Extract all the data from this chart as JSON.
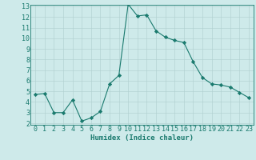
{
  "x": [
    0,
    1,
    2,
    3,
    4,
    5,
    6,
    7,
    8,
    9,
    10,
    11,
    12,
    13,
    14,
    15,
    16,
    17,
    18,
    19,
    20,
    21,
    22,
    23
  ],
  "y": [
    4.7,
    4.8,
    3.0,
    3.0,
    4.2,
    2.2,
    2.5,
    3.1,
    5.7,
    6.5,
    13.2,
    12.1,
    12.2,
    10.7,
    10.1,
    9.8,
    9.6,
    7.8,
    6.3,
    5.7,
    5.6,
    5.4,
    4.9,
    4.4
  ],
  "line_color": "#1a7a6e",
  "marker": "D",
  "marker_size": 2.2,
  "bg_color": "#ceeaea",
  "plot_bg_color": "#ceeaea",
  "grid_color": "#aecece",
  "xlabel": "Humidex (Indice chaleur)",
  "ylim": [
    2,
    13
  ],
  "xlim": [
    -0.5,
    23.5
  ],
  "yticks": [
    2,
    3,
    4,
    5,
    6,
    7,
    8,
    9,
    10,
    11,
    12,
    13
  ],
  "xticks": [
    0,
    1,
    2,
    3,
    4,
    5,
    6,
    7,
    8,
    9,
    10,
    11,
    12,
    13,
    14,
    15,
    16,
    17,
    18,
    19,
    20,
    21,
    22,
    23
  ],
  "xlabel_fontsize": 6.5,
  "tick_fontsize": 6.0,
  "tick_color": "#1a7a6e",
  "bottom_bg": "#c8d8d0"
}
